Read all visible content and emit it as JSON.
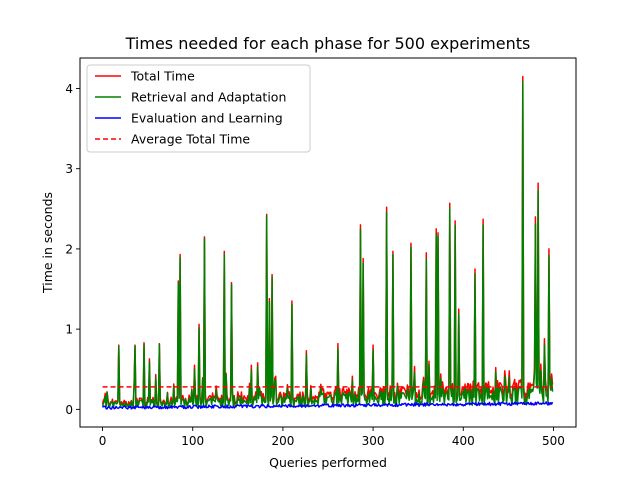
{
  "chart_data": {
    "type": "line",
    "title": "Times needed for each phase for 500 experiments",
    "xlabel": "Queries performed",
    "ylabel": "Time in seconds",
    "xlim": [
      -25,
      525
    ],
    "ylim": [
      -0.22,
      4.38
    ],
    "xticks": [
      0,
      100,
      200,
      300,
      400,
      500
    ],
    "yticks": [
      0,
      1,
      2,
      3,
      4
    ],
    "grid": false,
    "legend_position": "top-left",
    "peaks": [
      {
        "x": 3,
        "y": 0.2
      },
      {
        "x": 18,
        "y": 0.8
      },
      {
        "x": 36,
        "y": 0.8
      },
      {
        "x": 46,
        "y": 0.83
      },
      {
        "x": 52,
        "y": 0.63
      },
      {
        "x": 63,
        "y": 0.82
      },
      {
        "x": 84,
        "y": 1.6
      },
      {
        "x": 86,
        "y": 1.93
      },
      {
        "x": 102,
        "y": 0.55
      },
      {
        "x": 107,
        "y": 1.06
      },
      {
        "x": 113,
        "y": 2.15
      },
      {
        "x": 135,
        "y": 1.97
      },
      {
        "x": 137,
        "y": 0.45
      },
      {
        "x": 143,
        "y": 1.58
      },
      {
        "x": 165,
        "y": 0.55
      },
      {
        "x": 172,
        "y": 0.58
      },
      {
        "x": 182,
        "y": 2.43
      },
      {
        "x": 185,
        "y": 1.38
      },
      {
        "x": 188,
        "y": 1.68
      },
      {
        "x": 210,
        "y": 1.35
      },
      {
        "x": 226,
        "y": 0.73
      },
      {
        "x": 261,
        "y": 0.82
      },
      {
        "x": 286,
        "y": 2.3
      },
      {
        "x": 289,
        "y": 1.88
      },
      {
        "x": 300,
        "y": 0.8
      },
      {
        "x": 315,
        "y": 2.52
      },
      {
        "x": 322,
        "y": 1.97
      },
      {
        "x": 342,
        "y": 2.07
      },
      {
        "x": 359,
        "y": 1.95
      },
      {
        "x": 362,
        "y": 0.6
      },
      {
        "x": 370,
        "y": 2.25
      },
      {
        "x": 372,
        "y": 2.2
      },
      {
        "x": 385,
        "y": 2.57
      },
      {
        "x": 391,
        "y": 2.35
      },
      {
        "x": 395,
        "y": 1.25
      },
      {
        "x": 413,
        "y": 1.75
      },
      {
        "x": 422,
        "y": 2.37
      },
      {
        "x": 436,
        "y": 0.52
      },
      {
        "x": 446,
        "y": 0.48
      },
      {
        "x": 451,
        "y": 0.48
      },
      {
        "x": 466,
        "y": 4.15
      },
      {
        "x": 480,
        "y": 2.4
      },
      {
        "x": 483,
        "y": 2.82
      },
      {
        "x": 490,
        "y": 0.88
      },
      {
        "x": 495,
        "y": 2.0
      },
      {
        "x": 498,
        "y": 0.44
      }
    ],
    "series": [
      {
        "name": "Total Time",
        "color": "#ff0000",
        "style": "solid",
        "component": "total"
      },
      {
        "name": "Retrieval and Adaptation",
        "color": "#008000",
        "style": "solid",
        "component": "retrieval"
      },
      {
        "name": "Evaluation and Learning",
        "color": "#0000ff",
        "style": "solid",
        "component": "evaluation"
      },
      {
        "name": "Average Total Time",
        "color": "#ff0000",
        "style": "dashed",
        "value": 0.28
      }
    ]
  }
}
